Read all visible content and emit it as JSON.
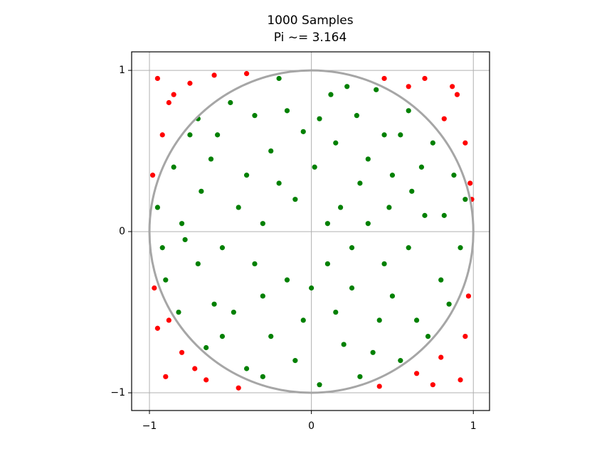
{
  "chart_data": {
    "type": "scatter",
    "title": "1000 Samples",
    "subtitle": "Pi ~= 3.164",
    "xlim": [
      -1.11,
      1.1
    ],
    "ylim": [
      -1.11,
      1.115
    ],
    "xticks": [
      {
        "value": -1,
        "label": "−1"
      },
      0,
      1
    ],
    "yticks": [
      {
        "value": -1,
        "label": "−1"
      },
      0,
      1
    ],
    "grid": true,
    "reference_circle": {
      "radius": 1,
      "color": "#a6a6a6"
    },
    "series": [
      {
        "color": "#008000",
        "x": [
          0.12,
          -0.35,
          0.55,
          -0.62,
          0.3,
          -0.1,
          0.7,
          -0.8,
          0.45,
          -0.3,
          0.2,
          -0.55,
          0.65,
          0.05,
          -0.9,
          0.88,
          -0.2,
          0.4,
          -0.75,
          0.15,
          -0.45,
          0.6,
          0.25,
          -0.05,
          -0.7,
          0.8,
          0.35,
          -0.25,
          0.5,
          -0.6,
          0.1,
          -0.4,
          0.55,
          0.92,
          -0.95,
          0.02,
          -0.15,
          0.75,
          -0.5,
          0.28,
          -0.82,
          0.42,
          -0.3,
          0.18,
          0.62,
          -0.68,
          0.05,
          -0.1,
          0.3,
          -0.85,
          0.85,
          -0.35,
          0.45,
          -0.58,
          0.72,
          -0.2,
          0.1,
          -0.48,
          0.38,
          0.95,
          -0.92,
          0.22,
          -0.05,
          0.5,
          -0.65,
          0.68,
          -0.4,
          0.15,
          -0.25,
          0.82,
          -0.78,
          0.35,
          -0.15,
          0.6,
          -0.7,
          0.0,
          0.25,
          -0.55,
          0.48,
          -0.3
        ],
        "values": [
          0.85,
          0.72,
          0.6,
          0.45,
          0.3,
          0.2,
          0.1,
          0.05,
          -0.2,
          -0.4,
          -0.7,
          -0.65,
          -0.55,
          -0.95,
          -0.3,
          0.35,
          0.95,
          0.88,
          0.6,
          0.55,
          0.15,
          -0.1,
          -0.35,
          -0.55,
          -0.2,
          -0.3,
          0.05,
          0.5,
          0.35,
          -0.45,
          -0.2,
          -0.85,
          -0.8,
          -0.1,
          0.15,
          0.4,
          -0.3,
          0.55,
          0.8,
          0.72,
          -0.5,
          -0.55,
          0.05,
          0.15,
          0.25,
          0.25,
          0.7,
          -0.8,
          -0.9,
          0.4,
          -0.45,
          -0.2,
          0.6,
          0.6,
          -0.65,
          0.3,
          0.05,
          -0.5,
          -0.75,
          0.2,
          -0.1,
          0.9,
          0.62,
          -0.4,
          -0.72,
          0.4,
          0.35,
          -0.5,
          -0.65,
          0.1,
          -0.05,
          0.45,
          0.75,
          0.75,
          0.7,
          -0.35,
          -0.1,
          -0.1,
          0.15,
          -0.9
        ]
      },
      {
        "color": "#ff0000",
        "x": [
          -0.95,
          -0.88,
          -0.75,
          -0.92,
          -0.6,
          0.7,
          0.9,
          0.82,
          0.95,
          0.6,
          -0.9,
          -0.8,
          -0.95,
          -0.65,
          -0.72,
          0.92,
          0.8,
          0.95,
          0.65,
          0.75,
          -0.98,
          0.98,
          -0.97,
          0.97,
          -0.4,
          0.45,
          -0.45,
          0.42,
          -0.85,
          0.87,
          -0.88,
          0.99
        ],
        "values": [
          0.95,
          0.8,
          0.92,
          0.6,
          0.97,
          0.95,
          0.85,
          0.7,
          0.55,
          0.9,
          -0.9,
          -0.75,
          -0.6,
          -0.92,
          -0.85,
          -0.92,
          -0.78,
          -0.65,
          -0.88,
          -0.95,
          0.35,
          0.3,
          -0.35,
          -0.4,
          0.98,
          0.95,
          -0.97,
          -0.96,
          0.85,
          0.9,
          -0.55,
          0.2
        ]
      }
    ]
  }
}
